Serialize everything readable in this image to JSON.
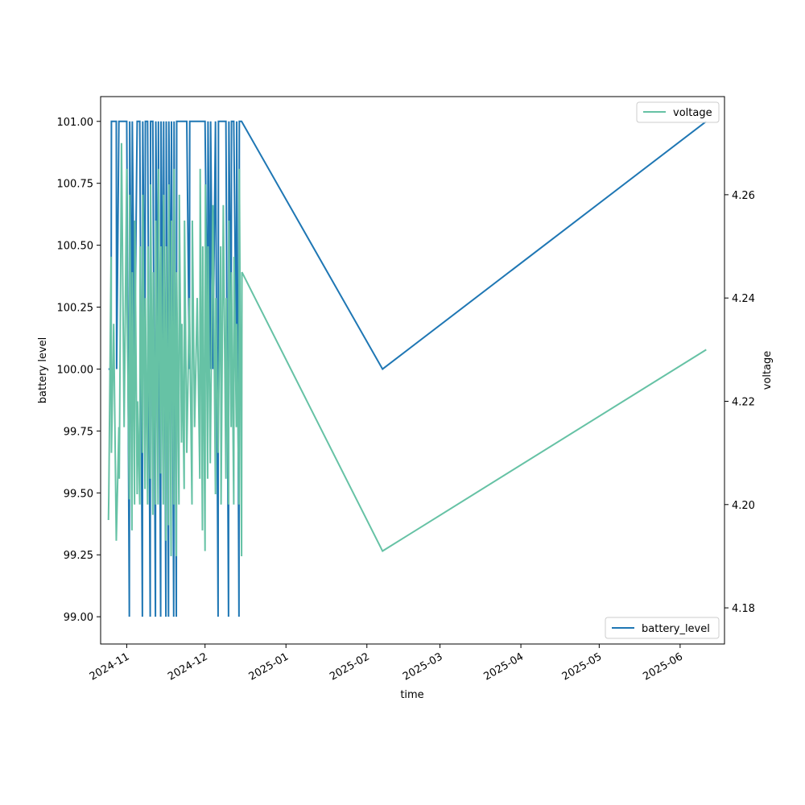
{
  "chart_data": {
    "type": "line",
    "xlabel": "time",
    "ylabel_left": "battery level",
    "ylabel_right": "voltage",
    "x_type": "date",
    "xlim": [
      "2024-10-22",
      "2025-06-18"
    ],
    "x_ticks": [
      "2024-11-01",
      "2024-12-01",
      "2025-01-01",
      "2025-02-01",
      "2025-03-01",
      "2025-04-01",
      "2025-05-01",
      "2025-06-01"
    ],
    "x_tick_labels": [
      "2024-11",
      "2024-12",
      "2025-01",
      "2025-02",
      "2025-03",
      "2025-04",
      "2025-05",
      "2025-06"
    ],
    "ylim_left": [
      98.89,
      101.1
    ],
    "y_ticks_left": [
      "99.00",
      "99.25",
      "99.50",
      "99.75",
      "100.00",
      "100.25",
      "100.50",
      "100.75",
      "101.00"
    ],
    "ylim_right": [
      4.173,
      4.279
    ],
    "y_ticks_right": [
      "4.18",
      "4.20",
      "4.22",
      "4.24",
      "4.26"
    ],
    "grid": false,
    "series": [
      {
        "name": "battery_level",
        "axis": "left",
        "color": "#1f77b4",
        "legend_position": "lower-right",
        "points": [
          [
            "2024-10-25",
            100
          ],
          [
            "2024-10-26",
            100
          ],
          [
            "2024-10-26",
            101
          ],
          [
            "2024-10-28",
            101
          ],
          [
            "2024-10-28",
            100
          ],
          [
            "2024-10-29",
            101
          ],
          [
            "2024-10-31",
            101
          ],
          [
            "2024-11-01",
            101
          ],
          [
            "2024-11-02",
            99
          ],
          [
            "2024-11-02",
            101
          ],
          [
            "2024-11-03",
            100
          ],
          [
            "2024-11-03",
            101
          ],
          [
            "2024-11-04",
            100
          ],
          [
            "2024-11-05",
            101
          ],
          [
            "2024-11-06",
            101
          ],
          [
            "2024-11-07",
            99
          ],
          [
            "2024-11-07",
            101
          ],
          [
            "2024-11-08",
            100
          ],
          [
            "2024-11-08",
            101
          ],
          [
            "2024-11-09",
            101
          ],
          [
            "2024-11-10",
            99
          ],
          [
            "2024-11-10",
            101
          ],
          [
            "2024-11-11",
            101
          ],
          [
            "2024-11-12",
            99
          ],
          [
            "2024-11-12",
            101
          ],
          [
            "2024-11-13",
            100
          ],
          [
            "2024-11-13",
            101
          ],
          [
            "2024-11-14",
            99
          ],
          [
            "2024-11-14",
            101
          ],
          [
            "2024-11-15",
            100
          ],
          [
            "2024-11-15",
            101
          ],
          [
            "2024-11-16",
            99
          ],
          [
            "2024-11-16",
            101
          ],
          [
            "2024-11-17",
            99
          ],
          [
            "2024-11-17",
            101
          ],
          [
            "2024-11-18",
            100
          ],
          [
            "2024-11-18",
            101
          ],
          [
            "2024-11-19",
            99
          ],
          [
            "2024-11-19",
            101
          ],
          [
            "2024-11-20",
            99
          ],
          [
            "2024-11-20",
            101
          ],
          [
            "2024-11-21",
            101
          ],
          [
            "2024-11-22",
            101
          ],
          [
            "2024-11-23",
            101
          ],
          [
            "2024-11-24",
            101
          ],
          [
            "2024-11-25",
            100
          ],
          [
            "2024-11-25",
            101
          ],
          [
            "2024-11-26",
            101
          ],
          [
            "2024-11-27",
            101
          ],
          [
            "2024-11-28",
            101
          ],
          [
            "2024-11-29",
            101
          ],
          [
            "2024-11-30",
            101
          ],
          [
            "2024-12-01",
            101
          ],
          [
            "2024-12-02",
            100
          ],
          [
            "2024-12-02",
            101
          ],
          [
            "2024-12-03",
            100
          ],
          [
            "2024-12-03",
            101
          ],
          [
            "2024-12-04",
            100
          ],
          [
            "2024-12-05",
            101
          ],
          [
            "2024-12-06",
            99
          ],
          [
            "2024-12-06",
            101
          ],
          [
            "2024-12-07",
            101
          ],
          [
            "2024-12-08",
            101
          ],
          [
            "2024-12-09",
            101
          ],
          [
            "2024-12-10",
            99
          ],
          [
            "2024-12-10",
            101
          ],
          [
            "2024-12-11",
            100
          ],
          [
            "2024-12-11",
            101
          ],
          [
            "2024-12-12",
            101
          ],
          [
            "2024-12-13",
            100
          ],
          [
            "2024-12-13",
            101
          ],
          [
            "2024-12-14",
            99
          ],
          [
            "2024-12-14",
            101
          ],
          [
            "2024-12-15",
            101
          ],
          [
            "2025-02-07",
            100
          ],
          [
            "2025-06-11",
            101
          ]
        ]
      },
      {
        "name": "voltage",
        "axis": "right",
        "color": "#66c2a5",
        "legend_position": "upper-right",
        "points": [
          [
            "2024-10-25",
            4.197
          ],
          [
            "2024-10-25",
            4.202
          ],
          [
            "2024-10-26",
            4.248
          ],
          [
            "2024-10-26",
            4.21
          ],
          [
            "2024-10-27",
            4.235
          ],
          [
            "2024-10-28",
            4.193
          ],
          [
            "2024-10-29",
            4.215
          ],
          [
            "2024-10-29",
            4.205
          ],
          [
            "2024-10-30",
            4.27
          ],
          [
            "2024-10-31",
            4.215
          ],
          [
            "2024-11-01",
            4.265
          ],
          [
            "2024-11-01",
            4.238
          ],
          [
            "2024-11-02",
            4.201
          ],
          [
            "2024-11-02",
            4.26
          ],
          [
            "2024-11-03",
            4.195
          ],
          [
            "2024-11-03",
            4.245
          ],
          [
            "2024-11-04",
            4.2
          ],
          [
            "2024-11-04",
            4.255
          ],
          [
            "2024-11-05",
            4.202
          ],
          [
            "2024-11-05",
            4.22
          ],
          [
            "2024-11-06",
            4.2
          ],
          [
            "2024-11-06",
            4.25
          ],
          [
            "2024-11-07",
            4.21
          ],
          [
            "2024-11-07",
            4.26
          ],
          [
            "2024-11-08",
            4.203
          ],
          [
            "2024-11-08",
            4.24
          ],
          [
            "2024-11-09",
            4.2
          ],
          [
            "2024-11-09",
            4.25
          ],
          [
            "2024-11-10",
            4.205
          ],
          [
            "2024-11-10",
            4.262
          ],
          [
            "2024-11-11",
            4.198
          ],
          [
            "2024-11-11",
            4.245
          ],
          [
            "2024-11-12",
            4.2
          ],
          [
            "2024-11-12",
            4.255
          ],
          [
            "2024-11-13",
            4.2
          ],
          [
            "2024-11-13",
            4.265
          ],
          [
            "2024-11-14",
            4.206
          ],
          [
            "2024-11-14",
            4.25
          ],
          [
            "2024-11-15",
            4.2
          ],
          [
            "2024-11-15",
            4.26
          ],
          [
            "2024-11-16",
            4.193
          ],
          [
            "2024-11-16",
            4.25
          ],
          [
            "2024-11-17",
            4.196
          ],
          [
            "2024-11-17",
            4.262
          ],
          [
            "2024-11-18",
            4.19
          ],
          [
            "2024-11-18",
            4.255
          ],
          [
            "2024-11-19",
            4.2
          ],
          [
            "2024-11-19",
            4.265
          ],
          [
            "2024-11-20",
            4.19
          ],
          [
            "2024-11-20",
            4.245
          ],
          [
            "2024-11-21",
            4.2
          ],
          [
            "2024-11-21",
            4.26
          ],
          [
            "2024-11-22",
            4.212
          ],
          [
            "2024-11-22",
            4.235
          ],
          [
            "2024-11-23",
            4.203
          ],
          [
            "2024-11-23",
            4.255
          ],
          [
            "2024-11-24",
            4.21
          ],
          [
            "2024-11-25",
            4.24
          ],
          [
            "2024-11-26",
            4.2
          ],
          [
            "2024-11-26",
            4.255
          ],
          [
            "2024-11-27",
            4.215
          ],
          [
            "2024-11-28",
            4.24
          ],
          [
            "2024-11-29",
            4.205
          ],
          [
            "2024-11-29",
            4.265
          ],
          [
            "2024-11-30",
            4.195
          ],
          [
            "2024-11-30",
            4.25
          ],
          [
            "2024-12-01",
            4.191
          ],
          [
            "2024-12-01",
            4.262
          ],
          [
            "2024-12-02",
            4.205
          ],
          [
            "2024-12-02",
            4.25
          ],
          [
            "2024-12-03",
            4.208
          ],
          [
            "2024-12-04",
            4.258
          ],
          [
            "2024-12-05",
            4.202
          ],
          [
            "2024-12-05",
            4.24
          ],
          [
            "2024-12-06",
            4.21
          ],
          [
            "2024-12-07",
            4.25
          ],
          [
            "2024-12-07",
            4.2
          ],
          [
            "2024-12-08",
            4.258
          ],
          [
            "2024-12-09",
            4.205
          ],
          [
            "2024-12-09",
            4.24
          ],
          [
            "2024-12-10",
            4.2
          ],
          [
            "2024-12-10",
            4.255
          ],
          [
            "2024-12-11",
            4.215
          ],
          [
            "2024-12-11",
            4.245
          ],
          [
            "2024-12-12",
            4.2
          ],
          [
            "2024-12-12",
            4.248
          ],
          [
            "2024-12-13",
            4.215
          ],
          [
            "2024-12-13",
            4.235
          ],
          [
            "2024-12-14",
            4.2
          ],
          [
            "2024-12-14",
            4.265
          ],
          [
            "2024-12-15",
            4.19
          ],
          [
            "2024-12-15",
            4.245
          ],
          [
            "2025-02-07",
            4.191
          ],
          [
            "2025-06-11",
            4.23
          ]
        ]
      }
    ]
  }
}
